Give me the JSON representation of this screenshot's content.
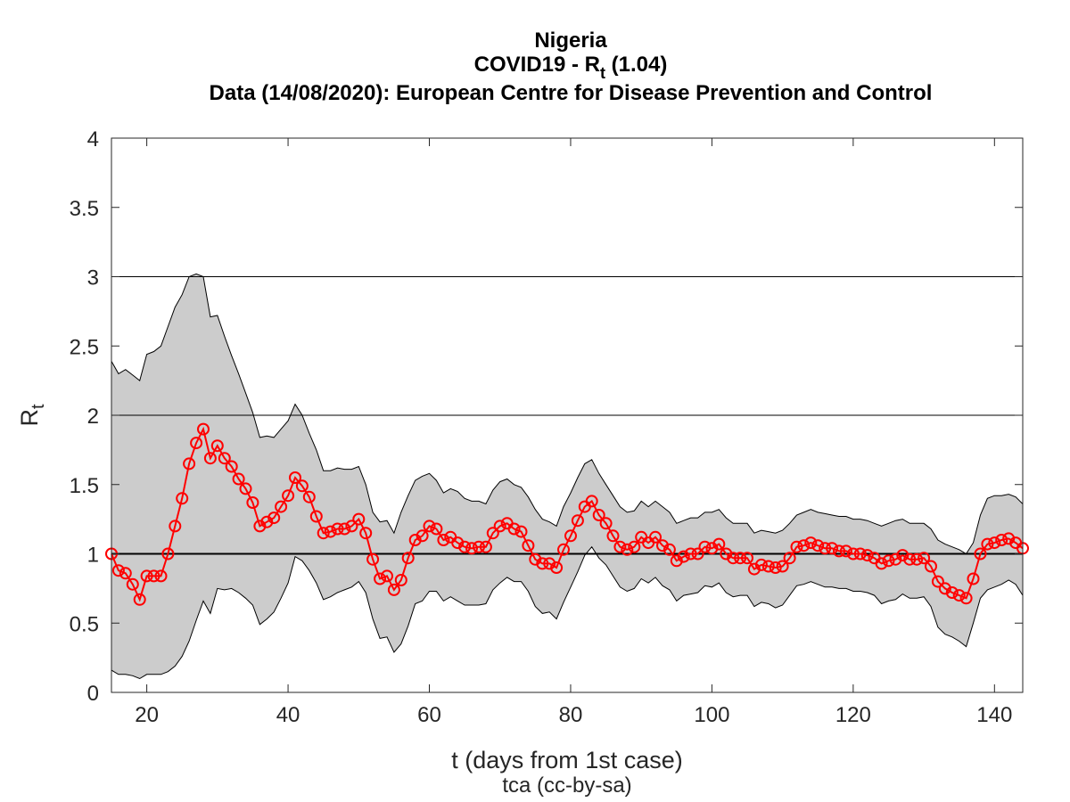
{
  "header": {
    "country": "Nigeria",
    "title_main": "COVID19 - R",
    "title_sub": "t",
    "title_value": " (1.04)",
    "source": "Data (14/08/2020): European Centre for Disease Prevention and Control"
  },
  "axes": {
    "xlabel": "t (days from 1st case)",
    "ylabel_main": "R",
    "ylabel_sub": "t",
    "credit": "tca (cc-by-sa)"
  },
  "colors": {
    "band_fill": "#cccccc",
    "series": "#ff0000",
    "axis": "#262626"
  },
  "chart_data": {
    "type": "line",
    "xlim": [
      15,
      144
    ],
    "ylim": [
      0,
      4
    ],
    "xticks": [
      20,
      40,
      60,
      80,
      100,
      120,
      140
    ],
    "yticks": [
      0,
      0.5,
      1,
      1.5,
      2,
      2.5,
      3,
      3.5,
      4
    ],
    "hlines": [
      1,
      2,
      3
    ],
    "series": [
      {
        "x": [
          15,
          16,
          17,
          18,
          19,
          20,
          21,
          22,
          23,
          24,
          25,
          26,
          27,
          28,
          29,
          30,
          31,
          32,
          33,
          34,
          35,
          36,
          37,
          38,
          39,
          40,
          41,
          42,
          43,
          44,
          45,
          46,
          47,
          48,
          49,
          50,
          51,
          52,
          53,
          54,
          55,
          56,
          57,
          58,
          59,
          60,
          61,
          62,
          63,
          64,
          65,
          66,
          67,
          68,
          69,
          70,
          71,
          72,
          73,
          74,
          75,
          76,
          77,
          78,
          79,
          80,
          81,
          82,
          83,
          84,
          85,
          86,
          87,
          88,
          89,
          90,
          91,
          92,
          93,
          94,
          95,
          96,
          97,
          98,
          99,
          100,
          101,
          102,
          103,
          104,
          105,
          106,
          107,
          108,
          109,
          110,
          111,
          112,
          113,
          114,
          115,
          116,
          117,
          118,
          119,
          120,
          121,
          122,
          123,
          124,
          125,
          126,
          127,
          128,
          129,
          130,
          131,
          132,
          133,
          134,
          135,
          136,
          137,
          138,
          139,
          140,
          141,
          142,
          143,
          144
        ],
        "values": [
          1.0,
          0.88,
          0.86,
          0.78,
          0.67,
          0.84,
          0.84,
          0.84,
          1.0,
          1.2,
          1.4,
          1.65,
          1.8,
          1.9,
          1.69,
          1.78,
          1.69,
          1.63,
          1.54,
          1.47,
          1.37,
          1.2,
          1.23,
          1.26,
          1.34,
          1.42,
          1.55,
          1.49,
          1.41,
          1.27,
          1.15,
          1.16,
          1.18,
          1.18,
          1.2,
          1.25,
          1.15,
          0.96,
          0.82,
          0.84,
          0.74,
          0.81,
          0.97,
          1.1,
          1.13,
          1.2,
          1.18,
          1.1,
          1.12,
          1.08,
          1.05,
          1.04,
          1.05,
          1.05,
          1.15,
          1.2,
          1.22,
          1.18,
          1.16,
          1.06,
          0.96,
          0.93,
          0.93,
          0.9,
          1.03,
          1.13,
          1.24,
          1.34,
          1.38,
          1.28,
          1.22,
          1.13,
          1.05,
          1.03,
          1.05,
          1.12,
          1.08,
          1.12,
          1.06,
          1.03,
          0.95,
          0.98,
          1.0,
          1.0,
          1.05,
          1.04,
          1.07,
          1.0,
          0.97,
          0.97,
          0.97,
          0.89,
          0.92,
          0.91,
          0.9,
          0.91,
          0.97,
          1.05,
          1.06,
          1.08,
          1.06,
          1.04,
          1.04,
          1.02,
          1.02,
          1.0,
          1.0,
          0.99,
          0.97,
          0.93,
          0.95,
          0.96,
          0.99,
          0.96,
          0.96,
          0.97,
          0.91,
          0.8,
          0.75,
          0.72,
          0.7,
          0.68,
          0.82,
          1.0,
          1.07,
          1.08,
          1.1,
          1.11,
          1.08,
          1.04
        ]
      }
    ],
    "band": {
      "upper": [
        2.39,
        2.3,
        2.33,
        2.29,
        2.25,
        2.44,
        2.46,
        2.5,
        2.64,
        2.78,
        2.87,
        3.0,
        3.02,
        3.0,
        2.71,
        2.72,
        2.57,
        2.43,
        2.3,
        2.16,
        2.02,
        1.84,
        1.85,
        1.84,
        1.9,
        1.96,
        2.08,
        2.0,
        1.87,
        1.75,
        1.6,
        1.6,
        1.62,
        1.61,
        1.61,
        1.63,
        1.5,
        1.3,
        1.23,
        1.24,
        1.15,
        1.3,
        1.42,
        1.53,
        1.56,
        1.58,
        1.53,
        1.44,
        1.47,
        1.45,
        1.4,
        1.38,
        1.38,
        1.36,
        1.46,
        1.52,
        1.54,
        1.5,
        1.48,
        1.41,
        1.32,
        1.25,
        1.23,
        1.2,
        1.34,
        1.44,
        1.55,
        1.65,
        1.68,
        1.58,
        1.5,
        1.42,
        1.34,
        1.3,
        1.31,
        1.38,
        1.34,
        1.38,
        1.34,
        1.3,
        1.22,
        1.24,
        1.26,
        1.26,
        1.3,
        1.3,
        1.32,
        1.26,
        1.22,
        1.22,
        1.22,
        1.15,
        1.17,
        1.16,
        1.15,
        1.17,
        1.22,
        1.28,
        1.3,
        1.32,
        1.3,
        1.29,
        1.28,
        1.27,
        1.27,
        1.25,
        1.25,
        1.24,
        1.22,
        1.2,
        1.22,
        1.24,
        1.25,
        1.22,
        1.22,
        1.22,
        1.18,
        1.1,
        1.07,
        1.05,
        1.03,
        1.0,
        1.08,
        1.28,
        1.4,
        1.42,
        1.42,
        1.43,
        1.41,
        1.36
      ],
      "lower": [
        0.16,
        0.13,
        0.13,
        0.12,
        0.1,
        0.13,
        0.13,
        0.13,
        0.15,
        0.19,
        0.26,
        0.37,
        0.52,
        0.66,
        0.57,
        0.75,
        0.74,
        0.75,
        0.72,
        0.68,
        0.63,
        0.49,
        0.53,
        0.58,
        0.68,
        0.79,
        0.98,
        0.95,
        0.88,
        0.79,
        0.67,
        0.69,
        0.72,
        0.74,
        0.76,
        0.8,
        0.72,
        0.53,
        0.39,
        0.4,
        0.29,
        0.35,
        0.48,
        0.64,
        0.66,
        0.73,
        0.73,
        0.66,
        0.69,
        0.66,
        0.63,
        0.63,
        0.63,
        0.64,
        0.74,
        0.79,
        0.83,
        0.8,
        0.8,
        0.73,
        0.62,
        0.57,
        0.58,
        0.53,
        0.65,
        0.76,
        0.87,
        0.99,
        1.05,
        0.97,
        0.92,
        0.84,
        0.76,
        0.73,
        0.75,
        0.82,
        0.79,
        0.83,
        0.77,
        0.74,
        0.66,
        0.7,
        0.71,
        0.72,
        0.77,
        0.76,
        0.79,
        0.72,
        0.69,
        0.7,
        0.7,
        0.62,
        0.65,
        0.64,
        0.61,
        0.63,
        0.7,
        0.77,
        0.78,
        0.8,
        0.78,
        0.76,
        0.76,
        0.75,
        0.75,
        0.73,
        0.73,
        0.72,
        0.7,
        0.64,
        0.66,
        0.67,
        0.71,
        0.68,
        0.68,
        0.69,
        0.62,
        0.47,
        0.42,
        0.4,
        0.37,
        0.33,
        0.5,
        0.68,
        0.74,
        0.76,
        0.78,
        0.81,
        0.78,
        0.7
      ]
    }
  }
}
